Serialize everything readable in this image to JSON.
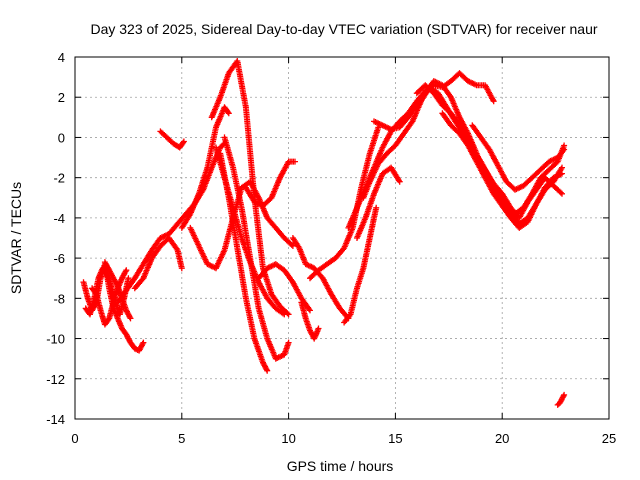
{
  "chart_data": {
    "type": "scatter",
    "title": "Day 323 of 2025, Sidereal Day-to-day VTEC variation (SDTVAR) for receiver naur",
    "xlabel": "GPS time / hours",
    "ylabel": "SDTVAR / TECUs",
    "xlim": [
      0,
      25
    ],
    "ylim": [
      -14,
      4
    ],
    "xticks": [
      "0",
      "5",
      "10",
      "15",
      "20",
      "25"
    ],
    "yticks": [
      "-14",
      "-12",
      "-10",
      "-8",
      "-6",
      "-4",
      "-2",
      "0",
      "2",
      "4"
    ],
    "grid": true,
    "marker": "+",
    "color": "#ff0000",
    "series": [
      {
        "x": [
          0.4,
          0.6,
          0.8,
          1.0,
          1.2,
          1.4,
          1.6,
          1.8,
          2.0,
          2.2,
          2.4,
          2.6,
          2.8,
          3.0,
          3.2
        ],
        "y": [
          -7.2,
          -8.0,
          -8.6,
          -8.2,
          -7.0,
          -6.3,
          -7.5,
          -8.5,
          -9.0,
          -9.5,
          -9.8,
          -10.2,
          -10.5,
          -10.6,
          -10.2
        ]
      },
      {
        "x": [
          0.5,
          0.7,
          0.9,
          1.1,
          1.3,
          1.5,
          1.7,
          1.9,
          2.1,
          2.3,
          2.5
        ],
        "y": [
          -8.5,
          -8.8,
          -8.0,
          -7.0,
          -6.5,
          -6.8,
          -7.4,
          -8.2,
          -8.8,
          -8.0,
          -7.0
        ]
      },
      {
        "x": [
          0.8,
          1.0,
          1.2,
          1.4,
          1.6,
          1.8,
          2.0,
          2.2,
          2.4
        ],
        "y": [
          -7.5,
          -7.8,
          -8.6,
          -9.3,
          -9.0,
          -8.2,
          -7.5,
          -7.0,
          -6.6
        ]
      },
      {
        "x": [
          1.4,
          1.6,
          1.8,
          2.0,
          2.2,
          2.4,
          2.6
        ],
        "y": [
          -6.2,
          -6.6,
          -7.0,
          -7.4,
          -8.0,
          -8.6,
          -9.0
        ]
      },
      {
        "x": [
          2.0,
          2.4,
          2.8,
          3.2,
          3.6,
          4.0,
          4.4,
          4.8,
          5.2,
          5.6,
          6.0,
          6.4,
          6.8,
          7.0
        ],
        "y": [
          -8.2,
          -7.6,
          -7.0,
          -6.3,
          -5.6,
          -5.0,
          -4.8,
          -4.3,
          -3.8,
          -3.3,
          -2.6,
          -1.5,
          -0.5,
          -0.3
        ]
      },
      {
        "x": [
          2.8,
          3.2,
          3.6,
          4.0,
          4.4,
          4.8,
          5.0
        ],
        "y": [
          -7.5,
          -7.0,
          -6.0,
          -5.4,
          -5.0,
          -5.6,
          -6.5
        ]
      },
      {
        "x": [
          4.0,
          4.3,
          4.6,
          4.9,
          5.1
        ],
        "y": [
          0.3,
          0.0,
          -0.3,
          -0.5,
          -0.2
        ]
      },
      {
        "x": [
          5.0,
          5.4,
          5.8,
          6.2,
          6.6,
          7.0,
          7.2
        ],
        "y": [
          -4.5,
          -3.8,
          -2.8,
          -1.5,
          0.5,
          1.5,
          1.2
        ]
      },
      {
        "x": [
          5.4,
          5.8,
          6.2,
          6.6,
          7.0,
          7.4,
          7.8,
          8.2,
          8.6,
          9.0,
          9.4,
          9.8,
          10.2
        ],
        "y": [
          -4.5,
          -5.4,
          -6.3,
          -6.5,
          -5.6,
          -4.0,
          -2.5,
          -2.2,
          -3.0,
          -4.0,
          -4.5,
          -5.0,
          -5.4
        ]
      },
      {
        "x": [
          6.4,
          6.8,
          7.2,
          7.6,
          8.0,
          8.4,
          8.8,
          9.2,
          9.6,
          10.0
        ],
        "y": [
          1.0,
          2.0,
          3.2,
          3.8,
          1.5,
          -3.0,
          -6.5,
          -7.8,
          -8.4,
          -8.8
        ]
      },
      {
        "x": [
          6.6,
          7.0,
          7.4,
          7.8,
          8.2,
          8.6,
          9.0,
          9.4,
          9.8
        ],
        "y": [
          -0.5,
          -2.0,
          -3.5,
          -5.0,
          -6.2,
          -7.2,
          -8.0,
          -8.5,
          -8.8
        ]
      },
      {
        "x": [
          7.0,
          7.4,
          7.8,
          8.2,
          8.6,
          9.0,
          9.4,
          9.8,
          10.0
        ],
        "y": [
          0.0,
          -1.5,
          -3.5,
          -6.0,
          -8.5,
          -10.0,
          -11.0,
          -10.8,
          -10.2
        ]
      },
      {
        "x": [
          6.8,
          7.2,
          7.6,
          8.0,
          8.4,
          8.8,
          9.0
        ],
        "y": [
          -0.8,
          -3.0,
          -5.5,
          -8.0,
          -10.0,
          -11.2,
          -11.6
        ]
      },
      {
        "x": [
          8.0,
          8.4,
          8.8,
          9.2,
          9.6,
          10.0,
          10.3
        ],
        "y": [
          -2.5,
          -3.2,
          -3.4,
          -3.0,
          -2.0,
          -1.2,
          -1.2
        ]
      },
      {
        "x": [
          8.6,
          9.0,
          9.4,
          9.8,
          10.2,
          10.6,
          11.0
        ],
        "y": [
          -7.0,
          -6.5,
          -6.3,
          -6.6,
          -7.2,
          -8.0,
          -8.6
        ]
      },
      {
        "x": [
          10.2,
          10.5,
          10.8,
          11.2,
          11.6,
          12.0,
          12.4,
          12.8
        ],
        "y": [
          -5.0,
          -5.5,
          -6.3,
          -6.5,
          -7.0,
          -7.8,
          -8.5,
          -9.0
        ]
      },
      {
        "x": [
          10.6,
          10.8,
          11.0,
          11.2,
          11.4
        ],
        "y": [
          -8.2,
          -9.0,
          -9.6,
          -10.0,
          -9.5
        ]
      },
      {
        "x": [
          11.0,
          11.4,
          11.8,
          12.2,
          12.6,
          13.0,
          13.4,
          13.8,
          14.2
        ],
        "y": [
          -7.0,
          -6.6,
          -6.3,
          -6.0,
          -5.5,
          -4.5,
          -2.5,
          -0.8,
          0.5
        ]
      },
      {
        "x": [
          12.6,
          12.9,
          13.2,
          13.5,
          13.8,
          14.1
        ],
        "y": [
          -9.2,
          -8.8,
          -7.5,
          -6.5,
          -5.0,
          -3.5
        ]
      },
      {
        "x": [
          12.8,
          13.2,
          13.6,
          14.0,
          14.4,
          14.8,
          15.2,
          15.6,
          16.0,
          16.4,
          16.8,
          17.2,
          17.6,
          18.0,
          18.4,
          18.8,
          19.2,
          19.6
        ],
        "y": [
          -4.5,
          -3.5,
          -2.5,
          -1.5,
          -0.5,
          0.3,
          0.8,
          1.2,
          1.8,
          2.3,
          2.6,
          2.5,
          2.8,
          3.2,
          2.8,
          2.6,
          2.6,
          1.8
        ]
      },
      {
        "x": [
          13.2,
          13.6,
          14.0,
          14.4,
          14.8,
          15.2
        ],
        "y": [
          -5.0,
          -4.0,
          -2.8,
          -1.8,
          -1.5,
          -2.2
        ]
      },
      {
        "x": [
          13.5,
          13.8,
          14.2,
          14.6,
          15.0,
          15.4,
          15.8,
          16.2,
          16.6,
          17.0,
          17.4,
          17.8,
          18.2,
          18.6,
          19.0,
          19.4,
          19.8,
          20.2,
          20.6,
          21.0,
          21.4,
          21.8,
          22.2,
          22.6,
          22.9
        ],
        "y": [
          -3.0,
          -2.2,
          -1.3,
          -0.8,
          -0.4,
          0.2,
          0.8,
          1.8,
          2.5,
          2.2,
          1.5,
          0.8,
          0.2,
          -0.6,
          -1.2,
          -2.0,
          -2.8,
          -3.4,
          -3.8,
          -3.5,
          -2.8,
          -2.0,
          -1.6,
          -1.2,
          -0.4
        ]
      },
      {
        "x": [
          14.0,
          14.4,
          14.8,
          15.2,
          15.6,
          16.0,
          16.4,
          16.8,
          17.2,
          17.6,
          18.0,
          18.4,
          18.8,
          19.2,
          19.6,
          20.0,
          20.4,
          20.8,
          21.2,
          21.6,
          22.0,
          22.4,
          22.8
        ],
        "y": [
          0.8,
          0.6,
          0.4,
          0.5,
          1.0,
          1.6,
          2.2,
          2.8,
          2.6,
          2.0,
          1.0,
          0.2,
          -0.8,
          -1.8,
          -2.6,
          -3.2,
          -3.8,
          -4.3,
          -4.0,
          -3.3,
          -2.5,
          -2.0,
          -1.8
        ]
      },
      {
        "x": [
          16.0,
          16.4,
          16.8,
          17.2,
          17.6,
          18.0,
          18.4,
          18.8,
          19.2,
          19.6,
          20.0,
          20.4,
          20.8,
          21.2,
          21.6,
          22.0,
          22.4,
          22.8
        ],
        "y": [
          2.2,
          2.6,
          2.2,
          1.6,
          1.2,
          0.6,
          -0.2,
          -1.0,
          -1.6,
          -2.3,
          -2.8,
          -3.5,
          -4.0,
          -3.2,
          -2.6,
          -2.0,
          -2.4,
          -2.8
        ]
      },
      {
        "x": [
          17.2,
          17.6,
          18.0,
          18.4,
          18.8,
          19.2,
          19.6,
          20.0,
          20.4,
          20.8,
          21.2,
          21.6,
          22.0,
          22.4,
          22.8
        ],
        "y": [
          1.2,
          0.6,
          0.2,
          -0.4,
          -1.2,
          -2.0,
          -2.8,
          -3.4,
          -4.0,
          -4.5,
          -4.2,
          -3.3,
          -2.6,
          -2.2,
          -1.5
        ]
      },
      {
        "x": [
          18.6,
          19.0,
          19.4,
          19.8,
          20.2,
          20.6,
          21.0,
          21.4,
          21.8,
          22.2,
          22.6,
          22.9
        ],
        "y": [
          0.6,
          0.0,
          -0.6,
          -1.4,
          -2.2,
          -2.6,
          -2.4,
          -2.0,
          -1.6,
          -1.2,
          -1.0,
          -0.6
        ]
      },
      {
        "x": [
          22.6,
          22.7,
          22.8,
          22.9
        ],
        "y": [
          -13.3,
          -13.2,
          -13.0,
          -12.8
        ]
      }
    ]
  }
}
